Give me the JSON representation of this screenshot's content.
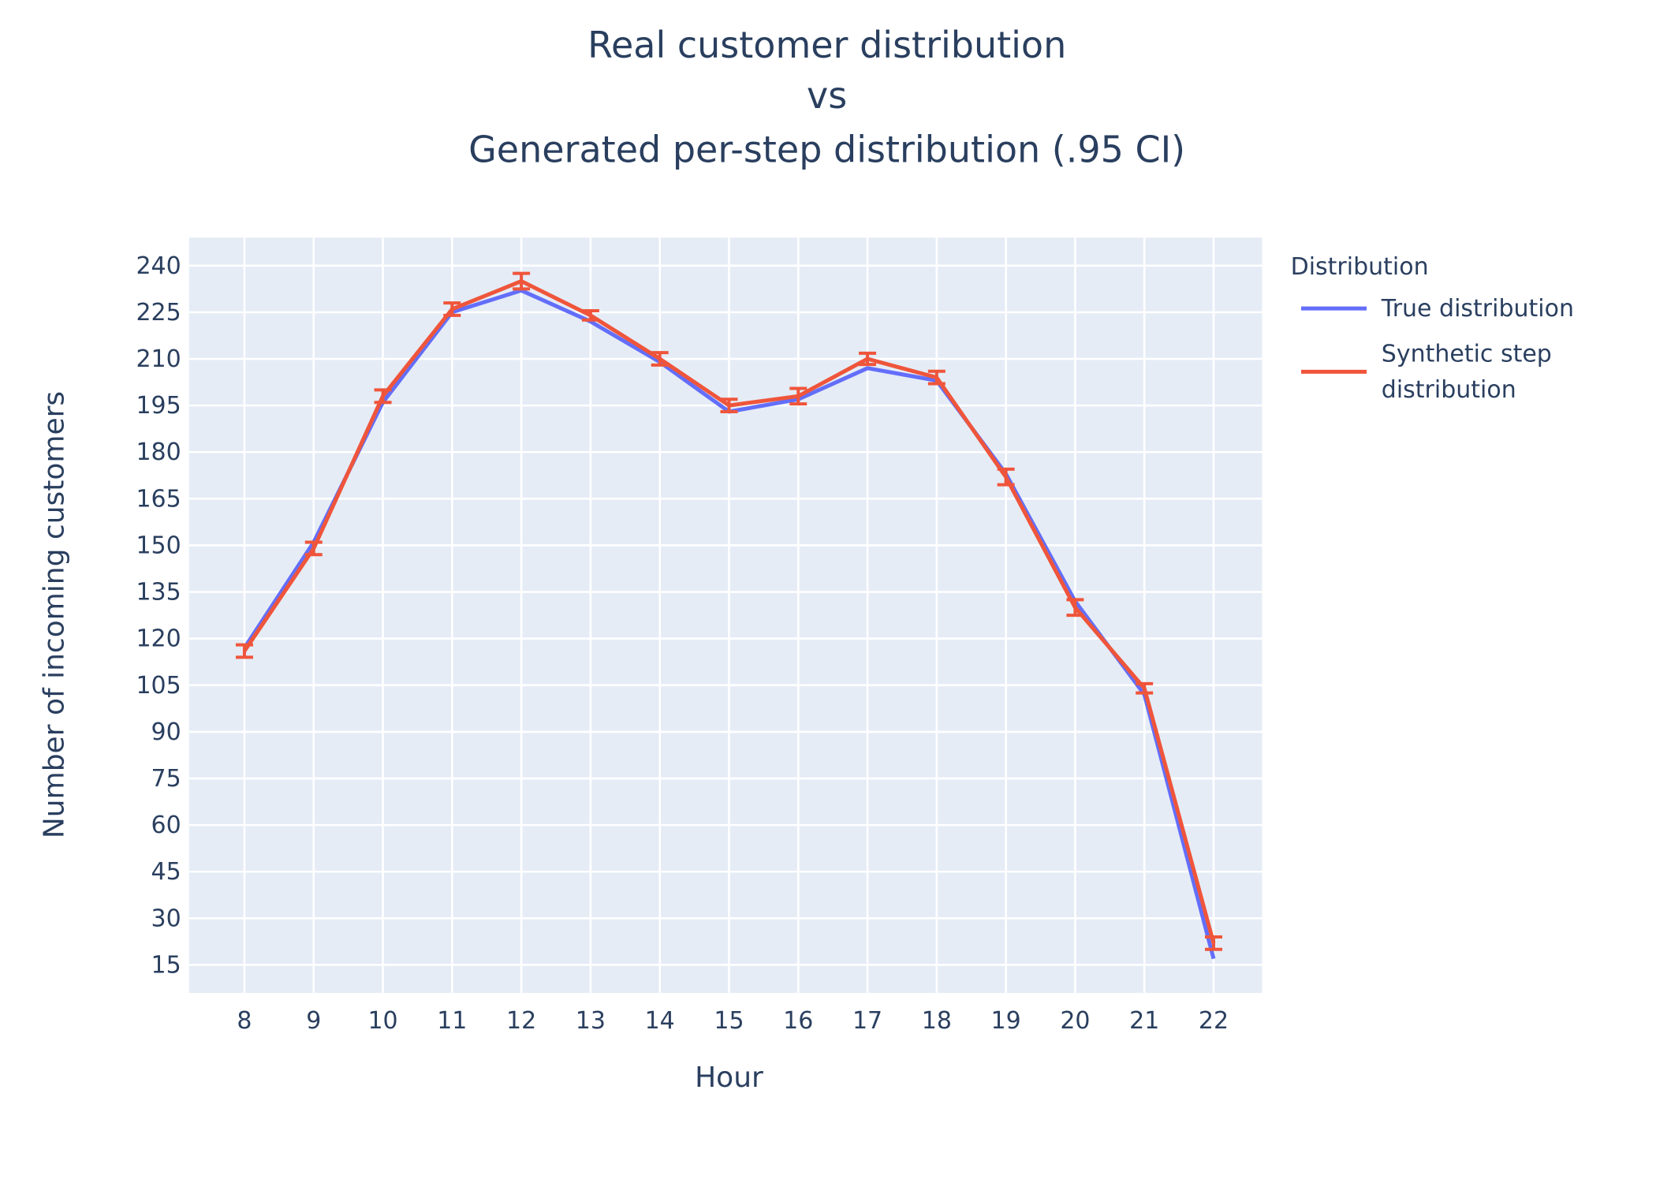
{
  "chart_data": {
    "type": "line",
    "title": [
      "Real customer distribution",
      "vs",
      "Generated per-step distribution (.95 CI)"
    ],
    "xlabel": "Hour",
    "ylabel": "Number of incoming customers",
    "x": [
      8,
      9,
      10,
      11,
      12,
      13,
      14,
      15,
      16,
      17,
      18,
      19,
      20,
      21,
      22
    ],
    "xticks": [
      "8",
      "9",
      "10",
      "11",
      "12",
      "13",
      "14",
      "15",
      "16",
      "17",
      "18",
      "19",
      "20",
      "21",
      "22"
    ],
    "yticks": [
      "15",
      "30",
      "45",
      "60",
      "75",
      "90",
      "105",
      "120",
      "135",
      "150",
      "165",
      "180",
      "195",
      "210",
      "225",
      "240"
    ],
    "xlim": [
      7.2,
      22.7
    ],
    "ylim": [
      6,
      249
    ],
    "grid": true,
    "legend": {
      "title": "Distribution",
      "placement": "right",
      "entries": [
        {
          "name": "True distribution",
          "color": "#636efa"
        },
        {
          "name_lines": [
            "Synthetic step",
            "distribution"
          ],
          "color": "#ef553b"
        }
      ]
    },
    "series": [
      {
        "name": "True distribution",
        "color": "#636efa",
        "values": [
          117,
          151,
          196,
          225,
          232,
          222,
          209,
          193,
          197,
          207,
          203,
          173,
          132,
          102,
          17
        ]
      },
      {
        "name": "Synthetic step distribution",
        "color": "#ef553b",
        "values": [
          116,
          149,
          198,
          226,
          235,
          224,
          210,
          195,
          198,
          210,
          204,
          172,
          130,
          104,
          22
        ],
        "ci": [
          2,
          2,
          2,
          2,
          2.5,
          1.5,
          2,
          2,
          2.5,
          1.8,
          2,
          2.5,
          2.5,
          1.5,
          2
        ]
      }
    ]
  }
}
